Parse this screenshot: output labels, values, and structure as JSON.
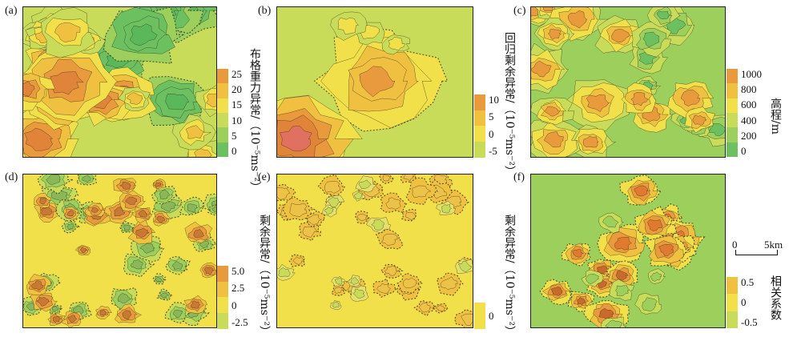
{
  "panels": [
    {
      "id": "a",
      "label": "(a)",
      "title": "布格重力异常/（10⁻⁵ms⁻²）",
      "scale_ticks": [
        "25",
        "20",
        "15",
        "10",
        "5",
        "0"
      ],
      "colors": [
        "#e89a3c",
        "#f0c040",
        "#f2e04a",
        "#c8dc5a",
        "#9ccf5c",
        "#6cc060"
      ]
    },
    {
      "id": "b",
      "label": "(b)",
      "title": "",
      "scale_ticks": [
        "10",
        "5",
        "0",
        "-5"
      ],
      "colors": [
        "#e89a3c",
        "#f0c040",
        "#f2e04a",
        "#c8dc5a"
      ]
    },
    {
      "id": "c",
      "label": "(c)",
      "title": "回归剩余异常/（10⁻⁵ms⁻²）",
      "scale_ticks": [
        "1000",
        "800",
        "600",
        "400",
        "200",
        "0"
      ],
      "colors": [
        "#e89a3c",
        "#f0c040",
        "#f2e04a",
        "#c8dc5a",
        "#9ccf5c",
        "#6cc060"
      ],
      "scale_title": "高程/m"
    },
    {
      "id": "d",
      "label": "(d)",
      "title": "",
      "scale_ticks": [
        "5.0",
        "2.5",
        "0",
        "-2.5"
      ],
      "colors": [
        "#e89a3c",
        "#f0c040",
        "#f2e04a",
        "#c8dc5a"
      ]
    },
    {
      "id": "e",
      "label": "(e)",
      "title": "剩余异常/（10⁻⁵ms⁻²）",
      "scale_ticks": [
        "0"
      ],
      "colors": [
        "#f2e04a"
      ]
    },
    {
      "id": "f",
      "label": "(f)",
      "title": "剩余异常/（10⁻⁵ms⁻²）",
      "scale_ticks": [
        "0.5",
        "0",
        "-0.5"
      ],
      "colors": [
        "#f0c040",
        "#f2e04a",
        "#c8dc5a"
      ],
      "scale_title": "相关系数"
    }
  ],
  "scale_bar": {
    "start": "0",
    "end": "5km"
  },
  "palette": {
    "orange": "#e89a3c",
    "gold": "#f0c040",
    "yellow": "#f2e04a",
    "lime": "#c8dc5a",
    "green": "#9ccf5c",
    "dkgreen": "#6cc060",
    "contour": "#2a2a1a"
  }
}
